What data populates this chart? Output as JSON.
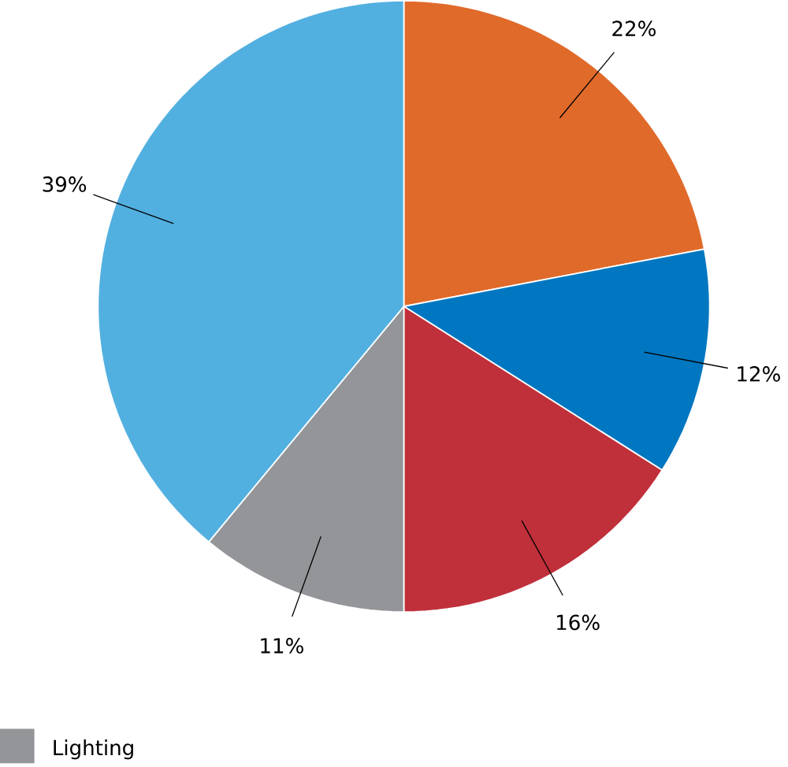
{
  "chart_data": {
    "type": "pie",
    "categories": [
      null,
      null,
      null,
      "Lighting",
      null
    ],
    "values": [
      22,
      12,
      16,
      11,
      39
    ],
    "colors": [
      "#e06a2a",
      "#0077c0",
      "#c0303a",
      "#939598",
      "#52b0e0"
    ],
    "value_labels": [
      "22%",
      "12%",
      "16%",
      "11%",
      "39%"
    ],
    "legend": "bottom left"
  }
}
